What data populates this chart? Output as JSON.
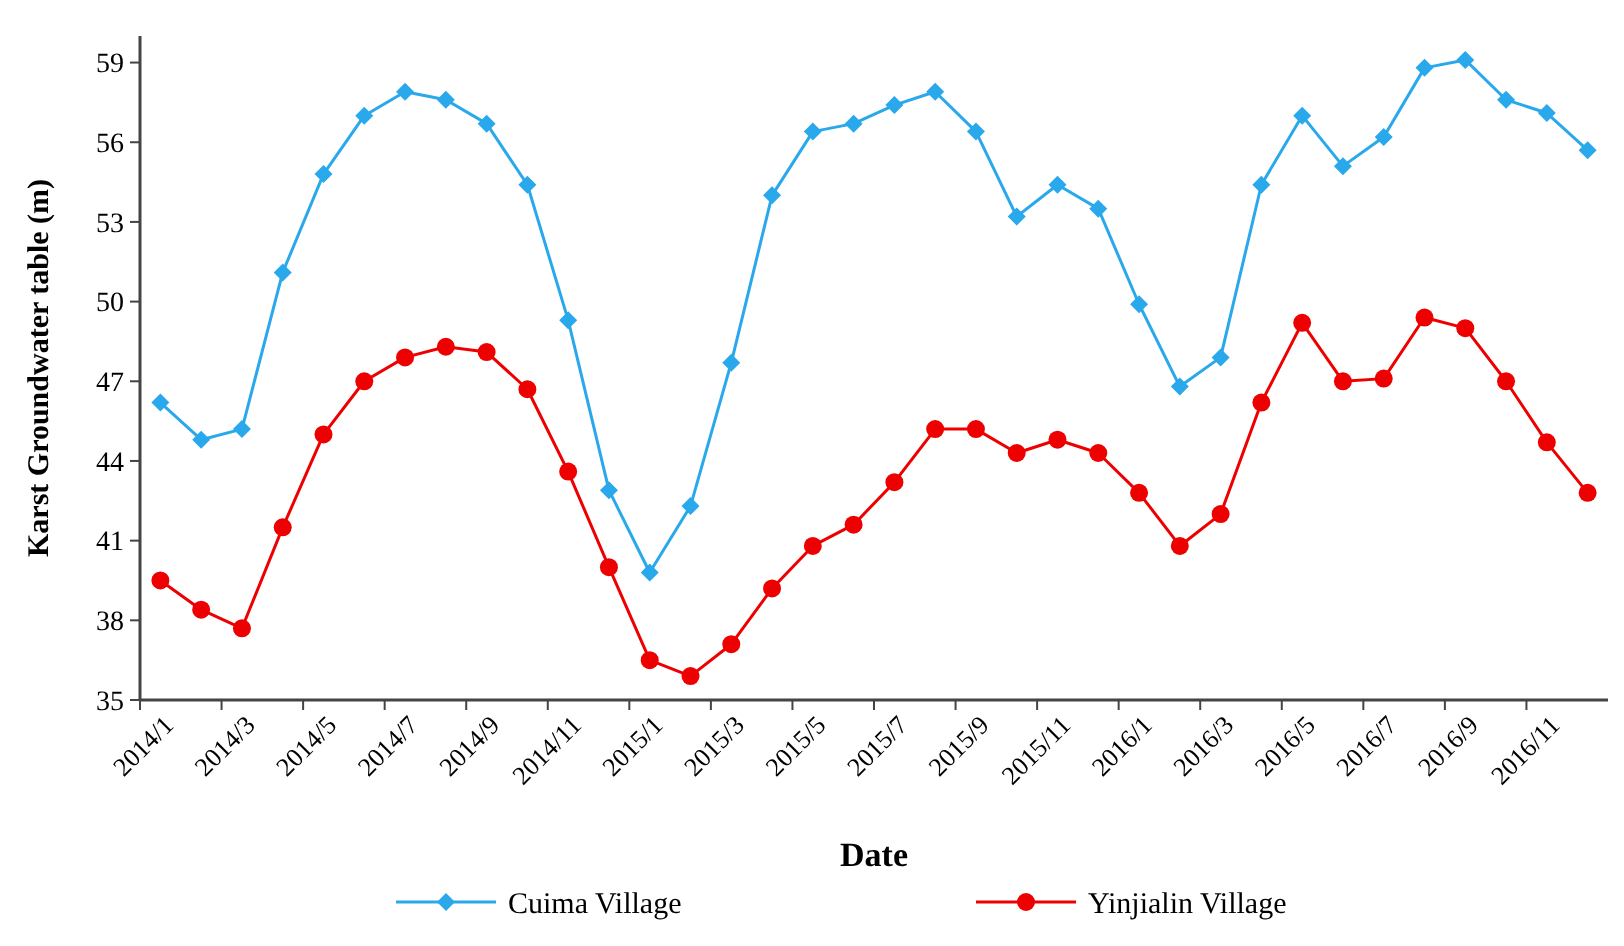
{
  "chart_data": {
    "type": "line",
    "xlabel": "Date",
    "ylabel": "Karst Groundwater table (m)",
    "categories": [
      "2014/1",
      null,
      "2014/3",
      null,
      "2014/5",
      null,
      "2014/7",
      null,
      "2014/9",
      null,
      "2014/11",
      null,
      "2015/1",
      null,
      "2015/3",
      null,
      "2015/5",
      null,
      "2015/7",
      null,
      "2015/9",
      null,
      "2015/11",
      null,
      "2016/1",
      null,
      "2016/3",
      null,
      "2016/5",
      null,
      "2016/7",
      null,
      "2016/9",
      null,
      "2016/11",
      null
    ],
    "series": [
      {
        "name": "Cuima Village",
        "color": "#29a8ec",
        "marker": "diamond",
        "values": [
          46.2,
          44.8,
          45.2,
          51.1,
          54.8,
          57.0,
          57.9,
          57.6,
          56.7,
          54.4,
          49.3,
          42.9,
          39.8,
          42.3,
          47.7,
          54.0,
          56.4,
          56.7,
          57.4,
          57.9,
          56.4,
          53.2,
          54.4,
          53.5,
          49.9,
          46.8,
          47.9,
          54.4,
          57.0,
          55.1,
          56.2,
          58.8,
          59.1,
          57.6,
          57.1,
          55.7
        ]
      },
      {
        "name": "Yinjialin Village",
        "color": "#ee0000",
        "marker": "circle",
        "values": [
          39.5,
          38.4,
          37.7,
          41.5,
          45.0,
          47.0,
          47.9,
          48.3,
          48.1,
          46.7,
          43.6,
          40.0,
          36.5,
          35.9,
          37.1,
          39.2,
          40.8,
          41.6,
          43.2,
          45.2,
          45.2,
          44.3,
          44.8,
          44.3,
          42.8,
          40.8,
          42.0,
          46.2,
          49.2,
          47.0,
          47.1,
          49.4,
          49.0,
          47.0,
          44.7,
          42.8
        ]
      }
    ],
    "ylim": [
      35,
      60
    ],
    "yticks": [
      35,
      38,
      41,
      44,
      47,
      50,
      53,
      56,
      59
    ],
    "grid": false,
    "legend": "bottom",
    "line_style": "solid"
  }
}
